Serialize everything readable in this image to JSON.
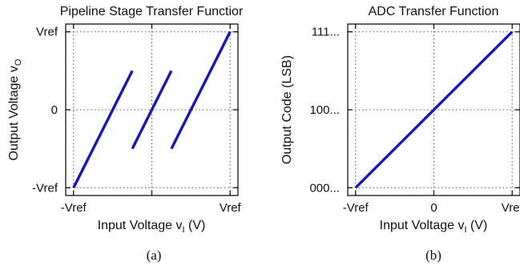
{
  "colors": {
    "series": "#1414d2"
  },
  "chart_data": [
    {
      "type": "line",
      "title": "Pipeline Stage Transfer Functior",
      "xlabel_main": "Input Voltage v",
      "xlabel_sub": "I",
      "xlabel_unit": " (V)",
      "ylabel_main": "Output Voltage v",
      "ylabel_sub": "O",
      "caption": "(a)",
      "grid": true,
      "xlim": [
        -1.1,
        1.1
      ],
      "ylim": [
        -1.1,
        1.1
      ],
      "xticks": [
        {
          "value": -1,
          "label": "-Vref"
        },
        {
          "value": 0,
          "label": ""
        },
        {
          "value": 1,
          "label": "Vref"
        }
      ],
      "yticks": [
        {
          "value": -1,
          "label": "-Vref"
        },
        {
          "value": 0,
          "label": "0"
        },
        {
          "value": 1,
          "label": "Vref"
        }
      ],
      "series": [
        {
          "x": [
            -1,
            -0.25
          ],
          "y": [
            -1,
            0.5
          ]
        },
        {
          "x": [
            -0.25,
            0.25
          ],
          "y": [
            -0.5,
            0.5
          ]
        },
        {
          "x": [
            0.25,
            1
          ],
          "y": [
            -0.5,
            1
          ]
        }
      ]
    },
    {
      "type": "line",
      "title": "ADC Transfer Function",
      "xlabel_main": "Input Voltage v",
      "xlabel_sub": "I",
      "xlabel_unit": " (V)",
      "ylabel": "Output Code (LSB)",
      "caption": "(b)",
      "grid": true,
      "xlim": [
        -1.1,
        1.1
      ],
      "ylim": [
        -0.1,
        2.1
      ],
      "xticks": [
        {
          "value": -1,
          "label": "-Vref"
        },
        {
          "value": 0,
          "label": "0"
        },
        {
          "value": 1,
          "label": "Vref"
        }
      ],
      "yticks": [
        {
          "value": 0,
          "label": "000..."
        },
        {
          "value": 1,
          "label": "100..."
        },
        {
          "value": 2,
          "label": "111..."
        }
      ],
      "series": [
        {
          "x": [
            -1,
            1
          ],
          "y": [
            0,
            2
          ]
        }
      ]
    }
  ]
}
